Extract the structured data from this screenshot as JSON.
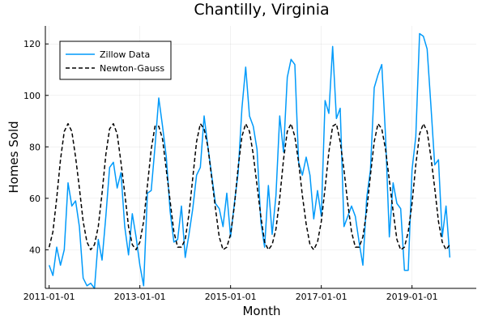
{
  "chart_data": {
    "type": "line",
    "title": "Chantilly, Virginia",
    "xlabel": "Month",
    "ylabel": "Homes Sold",
    "xlim": [
      "2010-12-01",
      "2020-06-01"
    ],
    "ylim": [
      25,
      127
    ],
    "x_ticks": [
      "2011-01-01",
      "2013-01-01",
      "2015-01-01",
      "2017-01-01",
      "2019-01-01"
    ],
    "y_ticks": [
      40,
      60,
      80,
      100,
      120
    ],
    "grid": true,
    "legend": {
      "position": "top-left"
    },
    "colors": {
      "zillow": "#009AFA",
      "newton": "#000000"
    },
    "series": [
      {
        "name": "Zillow Data",
        "style": "solid",
        "start": "2011-01",
        "values": [
          34,
          30,
          41,
          34,
          40,
          66,
          57,
          59,
          49,
          29,
          26,
          27,
          25,
          44,
          36,
          53,
          72,
          74,
          64,
          70,
          49,
          38,
          54,
          45,
          34,
          26,
          62,
          63,
          80,
          99,
          88,
          76,
          55,
          43,
          44,
          57,
          37,
          46,
          56,
          69,
          72,
          92,
          80,
          69,
          58,
          56,
          49,
          62,
          45,
          58,
          70,
          95,
          111,
          92,
          88,
          79,
          51,
          41,
          65,
          46,
          61,
          92,
          78,
          107,
          114,
          112,
          74,
          69,
          76,
          69,
          52,
          63,
          53,
          98,
          93,
          119,
          91,
          95,
          49,
          53,
          57,
          53,
          43,
          34,
          60,
          71,
          103,
          108,
          112,
          84,
          45,
          66,
          58,
          56,
          32,
          32,
          71,
          84,
          124,
          123,
          118,
          96,
          73,
          75,
          45,
          57,
          37
        ]
      },
      {
        "name": "Newton-Gauss",
        "style": "dashed",
        "start": "2011-01",
        "values": [
          41,
          47,
          60,
          75,
          86,
          89,
          86,
          76,
          64,
          51,
          43,
          40,
          42,
          49,
          62,
          77,
          87,
          89,
          85,
          74,
          62,
          49,
          42,
          40,
          43,
          51,
          65,
          79,
          88,
          88,
          83,
          71,
          59,
          47,
          41,
          41,
          44,
          54,
          68,
          82,
          89,
          87,
          80,
          68,
          56,
          45,
          40,
          41,
          46,
          57,
          72,
          84,
          89,
          86,
          77,
          65,
          53,
          43,
          40,
          42,
          48,
          60,
          75,
          86,
          89,
          84,
          74,
          61,
          50,
          42,
          40,
          43,
          51,
          64,
          78,
          88,
          89,
          82,
          71,
          58,
          47,
          41,
          41,
          45,
          55,
          69,
          82,
          89,
          87,
          79,
          67,
          55,
          44,
          40,
          41,
          47,
          58,
          73,
          85,
          89,
          86,
          76,
          64,
          51,
          43,
          40,
          42
        ]
      }
    ]
  }
}
